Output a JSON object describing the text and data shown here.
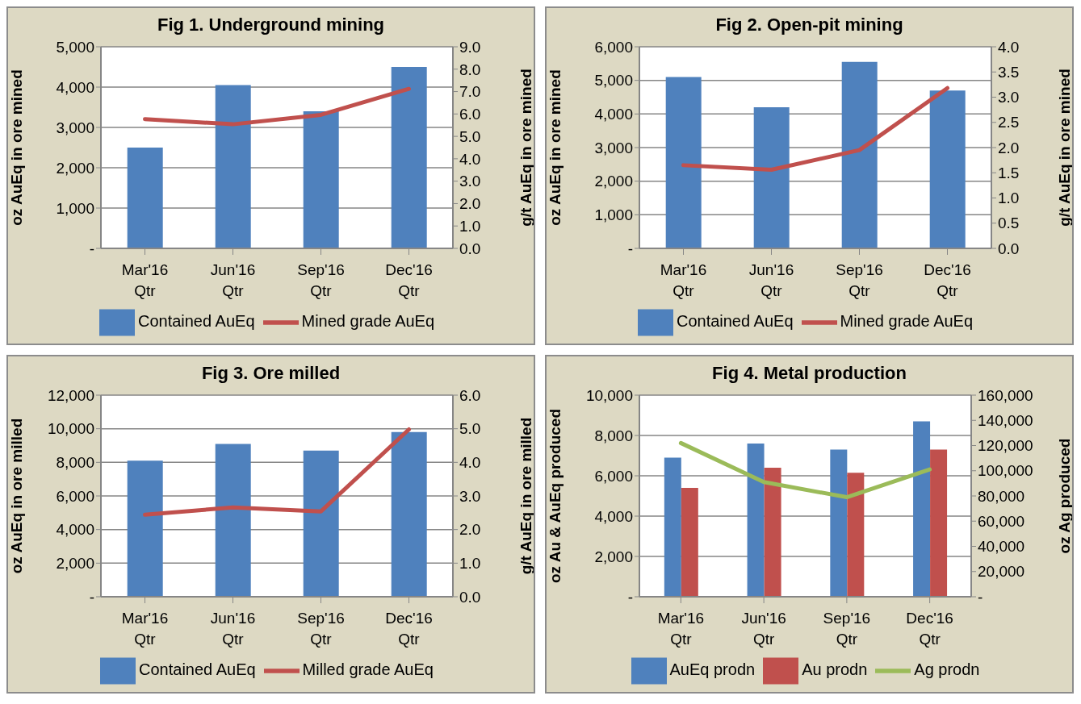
{
  "chart_data": [
    {
      "type": "bar",
      "title": "Fig 1. Underground mining",
      "ylabel": "oz AuEq in ore mined",
      "y2label": "g/t AuEq in ore mined",
      "categories": [
        "Mar'16 Qtr",
        "Jun'16 Qtr",
        "Sep'16 Qtr",
        "Dec'16 Qtr"
      ],
      "series": [
        {
          "name": "Contained AuEq",
          "color": "#4f81bd",
          "values": [
            2500,
            4050,
            3400,
            4500
          ]
        },
        {
          "name": "Mined grade AuEq",
          "type": "line",
          "axis": "y2",
          "color": "#c0504d",
          "values": [
            5.77,
            5.54,
            5.96,
            7.12
          ]
        }
      ],
      "ylim": [
        0,
        5000
      ],
      "yticks": [
        {
          "value": 0,
          "label": "-"
        },
        {
          "value": 1000,
          "label": "1,000"
        },
        {
          "value": 2000,
          "label": "2,000"
        },
        {
          "value": 3000,
          "label": "3,000"
        },
        {
          "value": 4000,
          "label": "4,000"
        },
        {
          "value": 5000,
          "label": "5,000"
        }
      ],
      "y2lim": [
        0,
        9
      ],
      "y2ticks": [
        {
          "value": 0,
          "label": "0.0"
        },
        {
          "value": 1,
          "label": "1.0"
        },
        {
          "value": 2,
          "label": "2.0"
        },
        {
          "value": 3,
          "label": "3.0"
        },
        {
          "value": 4,
          "label": "4.0"
        },
        {
          "value": 5,
          "label": "5.0"
        },
        {
          "value": 6,
          "label": "6.0"
        },
        {
          "value": 7,
          "label": "7.0"
        },
        {
          "value": 8,
          "label": "8.0"
        },
        {
          "value": 9,
          "label": "9.0"
        }
      ],
      "grid": "y",
      "legend": "bottom",
      "marker": "none"
    },
    {
      "type": "bar",
      "title": "Fig 2. Open-pit mining",
      "ylabel": "oz AuEq in ore mined",
      "y2label": "g/t AuEq in ore mined",
      "categories": [
        "Mar'16 Qtr",
        "Jun'16 Qtr",
        "Sep'16 Qtr",
        "Dec'16 Qtr"
      ],
      "series": [
        {
          "name": "Contained AuEq",
          "color": "#4f81bd",
          "values": [
            5100,
            4200,
            5550,
            4700
          ]
        },
        {
          "name": "Mined grade AuEq",
          "type": "line",
          "axis": "y2",
          "color": "#c0504d",
          "values": [
            1.65,
            1.56,
            1.95,
            3.18
          ]
        }
      ],
      "ylim": [
        0,
        6000
      ],
      "yticks": [
        {
          "value": 0,
          "label": "-"
        },
        {
          "value": 1000,
          "label": "1,000"
        },
        {
          "value": 2000,
          "label": "2,000"
        },
        {
          "value": 3000,
          "label": "3,000"
        },
        {
          "value": 4000,
          "label": "4,000"
        },
        {
          "value": 5000,
          "label": "5,000"
        },
        {
          "value": 6000,
          "label": "6,000"
        }
      ],
      "y2lim": [
        0,
        4
      ],
      "y2ticks": [
        {
          "value": 0,
          "label": "0.0"
        },
        {
          "value": 0.5,
          "label": "0.5"
        },
        {
          "value": 1,
          "label": "1.0"
        },
        {
          "value": 1.5,
          "label": "1.5"
        },
        {
          "value": 2,
          "label": "2.0"
        },
        {
          "value": 2.5,
          "label": "2.5"
        },
        {
          "value": 3,
          "label": "3.0"
        },
        {
          "value": 3.5,
          "label": "3.5"
        },
        {
          "value": 4,
          "label": "4.0"
        }
      ],
      "grid": "y",
      "legend": "bottom",
      "marker": "none"
    },
    {
      "type": "bar",
      "title": "Fig 3. Ore milled",
      "ylabel": "oz AuEq in ore milled",
      "y2label": "g/t AuEq in ore milled",
      "categories": [
        "Mar'16 Qtr",
        "Jun'16 Qtr",
        "Sep'16 Qtr",
        "Dec'16 Qtr"
      ],
      "series": [
        {
          "name": "Contained AuEq",
          "color": "#4f81bd",
          "values": [
            8100,
            9100,
            8700,
            9800
          ]
        },
        {
          "name": "Milled grade AuEq",
          "type": "line",
          "axis": "y2",
          "color": "#c0504d",
          "values": [
            2.44,
            2.66,
            2.54,
            4.98
          ]
        }
      ],
      "ylim": [
        0,
        12000
      ],
      "yticks": [
        {
          "value": 0,
          "label": "-"
        },
        {
          "value": 2000,
          "label": "2,000"
        },
        {
          "value": 4000,
          "label": "4,000"
        },
        {
          "value": 6000,
          "label": "6,000"
        },
        {
          "value": 8000,
          "label": "8,000"
        },
        {
          "value": 10000,
          "label": "10,000"
        },
        {
          "value": 12000,
          "label": "12,000"
        }
      ],
      "y2lim": [
        0,
        6
      ],
      "y2ticks": [
        {
          "value": 0,
          "label": "0.0"
        },
        {
          "value": 1,
          "label": "1.0"
        },
        {
          "value": 2,
          "label": "2.0"
        },
        {
          "value": 3,
          "label": "3.0"
        },
        {
          "value": 4,
          "label": "4.0"
        },
        {
          "value": 5,
          "label": "5.0"
        },
        {
          "value": 6,
          "label": "6.0"
        }
      ],
      "grid": "y",
      "legend": "bottom",
      "marker": "none"
    },
    {
      "type": "bar",
      "title": "Fig 4. Metal production",
      "ylabel": "oz Au & AuEq produced",
      "y2label": "oz Ag produced",
      "categories": [
        "Mar'16 Qtr",
        "Jun'16 Qtr",
        "Sep'16 Qtr",
        "Dec'16 Qtr"
      ],
      "series": [
        {
          "name": "AuEq prodn",
          "color": "#4f81bd",
          "values": [
            6900,
            7600,
            7300,
            8700
          ]
        },
        {
          "name": "Au prodn",
          "color": "#c0504d",
          "values": [
            5400,
            6400,
            6150,
            7300
          ]
        },
        {
          "name": "Ag prodn",
          "type": "line",
          "axis": "y2",
          "color": "#9bbb59",
          "values": [
            122000,
            91000,
            79000,
            101000
          ]
        }
      ],
      "ylim": [
        0,
        10000
      ],
      "yticks": [
        {
          "value": 0,
          "label": "-"
        },
        {
          "value": 2000,
          "label": "2,000"
        },
        {
          "value": 4000,
          "label": "4,000"
        },
        {
          "value": 6000,
          "label": "6,000"
        },
        {
          "value": 8000,
          "label": "8,000"
        },
        {
          "value": 10000,
          "label": "10,000"
        }
      ],
      "y2lim": [
        0,
        160000
      ],
      "y2ticks": [
        {
          "value": 0,
          "label": "-"
        },
        {
          "value": 20000,
          "label": "20,000"
        },
        {
          "value": 40000,
          "label": "40,000"
        },
        {
          "value": 60000,
          "label": "60,000"
        },
        {
          "value": 80000,
          "label": "80,000"
        },
        {
          "value": 100000,
          "label": "100,000"
        },
        {
          "value": 120000,
          "label": "120,000"
        },
        {
          "value": 140000,
          "label": "140,000"
        },
        {
          "value": 160000,
          "label": "160,000"
        }
      ],
      "grid": "y",
      "legend": "bottom",
      "marker": "none"
    }
  ]
}
